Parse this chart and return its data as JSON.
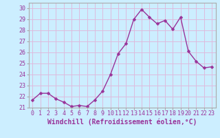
{
  "x": [
    0,
    1,
    2,
    3,
    4,
    5,
    6,
    7,
    8,
    9,
    10,
    11,
    12,
    13,
    14,
    15,
    16,
    17,
    18,
    19,
    20,
    21,
    22,
    23
  ],
  "y": [
    21.7,
    22.3,
    22.3,
    21.8,
    21.5,
    21.1,
    21.2,
    21.1,
    21.7,
    22.5,
    24.0,
    25.9,
    26.8,
    29.0,
    29.9,
    29.2,
    28.6,
    28.9,
    28.1,
    29.2,
    26.1,
    25.2,
    24.6,
    24.7
  ],
  "line_color": "#993399",
  "marker": "D",
  "marker_size": 2.5,
  "line_width": 1.0,
  "xlabel": "Windchill (Refroidissement éolien,°C)",
  "xlabel_fontsize": 7.0,
  "xlim": [
    -0.5,
    23.5
  ],
  "ylim": [
    21.0,
    30.5
  ],
  "yticks": [
    21,
    22,
    23,
    24,
    25,
    26,
    27,
    28,
    29,
    30
  ],
  "xticks": [
    0,
    1,
    2,
    3,
    4,
    5,
    6,
    7,
    8,
    9,
    10,
    11,
    12,
    13,
    14,
    15,
    16,
    17,
    18,
    19,
    20,
    21,
    22,
    23
  ],
  "bg_color": "#cceeff",
  "grid_color": "#ddbbdd",
  "tick_color": "#993399",
  "tick_fontsize": 6.0,
  "spine_color": "#aaaaaa"
}
